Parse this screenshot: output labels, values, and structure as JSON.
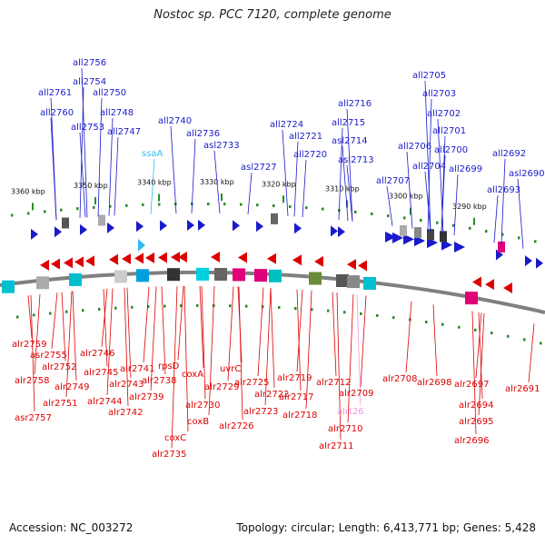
{
  "title": "Nostoc sp. PCC 7120, complete genome",
  "footer": {
    "accession": "Accession: NC_003272",
    "summary": "Topology: circular; Length: 6,413,771 bp; Genes: 5,428"
  },
  "colors": {
    "top_gene": "#1a1acc",
    "bottom_gene": "#dd0000",
    "rna_top": "#33bbee",
    "rna_bottom": "#ee99dd",
    "backbone": "#808080",
    "tick": "#2a8a2a"
  },
  "scale_labels": [
    "3360 kbp",
    "3350 kbp",
    "3340 kbp",
    "3330 kbp",
    "3320 kbp",
    "3310 kbp",
    "3300 kbp",
    "3290 kbp"
  ],
  "top_genes": [
    "all2756",
    "all2754",
    "all2761",
    "all2750",
    "all2760",
    "all2748",
    "all2753",
    "all2747",
    "all2740",
    "all2736",
    "asl2733",
    "ssaA",
    "all2716",
    "all2715",
    "all2724",
    "all2721",
    "asl2714",
    "all2720",
    "asl2713",
    "asl2727",
    "all2705",
    "all2703",
    "all2702",
    "all2701",
    "all2706",
    "all2700",
    "all2704",
    "all2699",
    "all2707",
    "all2692",
    "asl2690",
    "all2693"
  ],
  "bottom_genes": [
    "alr2759",
    "asr2755",
    "alr2752",
    "alr2758",
    "alr2749",
    "alr2751",
    "asr2757",
    "alr2746",
    "alr2745",
    "alr2744",
    "alr2743",
    "alr2741",
    "alr2742",
    "alr2739",
    "alr2738",
    "rpsD",
    "coxA",
    "alr2729",
    "alr2730",
    "coxB",
    "coxC",
    "alr2735",
    "uvrC",
    "alr2725",
    "alr2722",
    "alr2723",
    "alr2726",
    "alr2719",
    "alr2717",
    "alr2718",
    "alr2712",
    "alr2709",
    "alrt26",
    "alr2710",
    "alr2711",
    "alr2708",
    "alr2698",
    "alr2697",
    "alr2694",
    "alr2695",
    "alr2696",
    "alr2691"
  ]
}
